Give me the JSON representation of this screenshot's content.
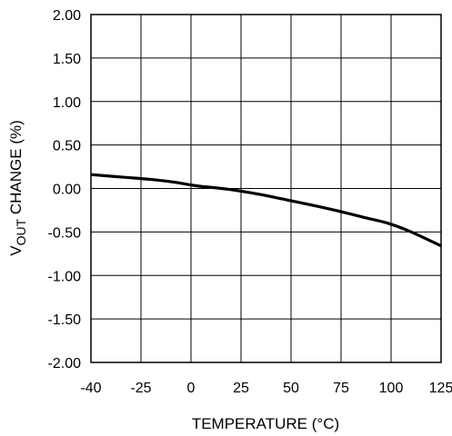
{
  "chart_data": {
    "type": "line",
    "title": "",
    "xlabel": "TEMPERATURE (°C)",
    "ylabel_main": "V",
    "ylabel_sub": "OUT",
    "ylabel_rest": " CHANGE (%)",
    "xlim": [
      -40,
      125
    ],
    "ylim": [
      -2.0,
      2.0
    ],
    "grid": true,
    "x_tick_labels": [
      "-40",
      "-25",
      "0",
      "25",
      "50",
      "75",
      "100",
      "125"
    ],
    "y_tick_labels": [
      "2.00",
      "1.50",
      "1.00",
      "0.50",
      "0.00",
      "-0.50",
      "-1.00",
      "-1.50",
      "-2.00"
    ],
    "series": [
      {
        "x": [
          -40,
          -25,
          -10,
          0,
          10,
          25,
          40,
          50,
          60,
          75,
          90,
          100,
          110,
          125
        ],
        "y": [
          0.16,
          0.13,
          0.1,
          0.07,
          0.03,
          -0.01,
          -0.07,
          -0.12,
          -0.17,
          -0.25,
          -0.34,
          -0.4,
          -0.49,
          -0.66
        ]
      }
    ],
    "line_color": "#000000"
  }
}
